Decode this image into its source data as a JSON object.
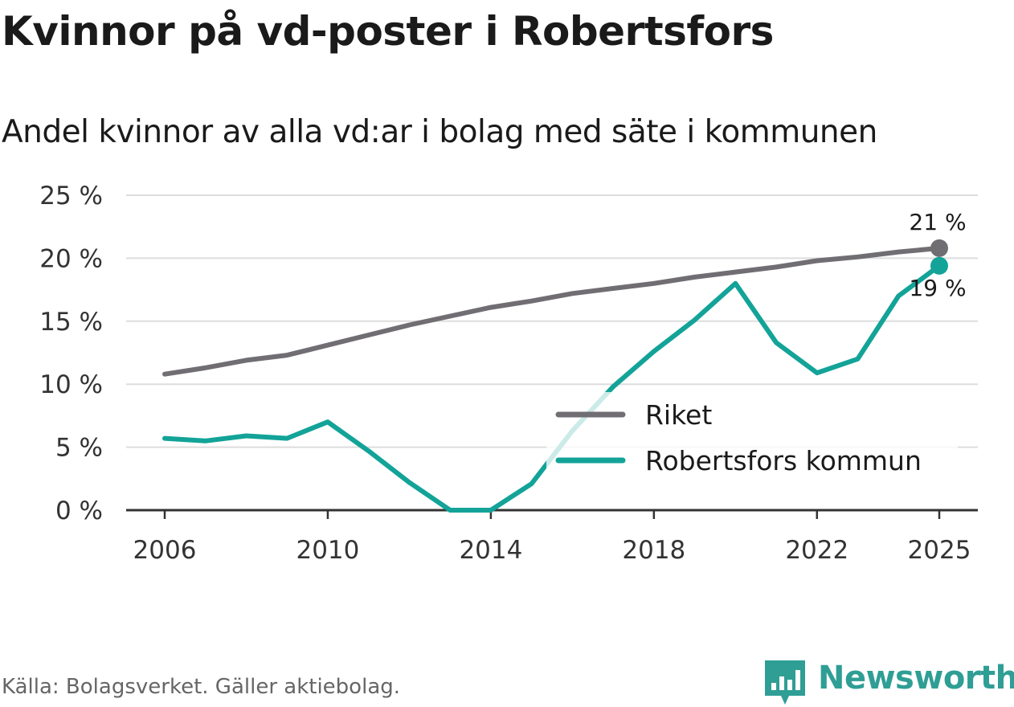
{
  "title": "Kvinnor på vd-poster i Robertsfors",
  "subtitle": "Andel kvinnor av alla vd:ar i bolag med säte i kommunen",
  "source": "Källa: Bolagsverket. Gäller aktiebolag.",
  "brand": "Newsworthy",
  "colors": {
    "riket": "#706e73",
    "kommun": "#13a398",
    "grid": "#dddddd",
    "axis": "#333333",
    "brand": "#2f9e95"
  },
  "chart_data": {
    "type": "line",
    "title": "Kvinnor på vd-poster i Robertsfors",
    "subtitle": "Andel kvinnor av alla vd:ar i bolag med säte i kommunen",
    "xlabel": "",
    "ylabel": "",
    "ylim": [
      0,
      25
    ],
    "xlim": [
      2006,
      2025
    ],
    "y_ticks": [
      0,
      5,
      10,
      15,
      20,
      25
    ],
    "y_tick_labels": [
      "0 %",
      "5 %",
      "10 %",
      "15 %",
      "20 %",
      "25 %"
    ],
    "x_ticks": [
      2006,
      2010,
      2014,
      2018,
      2022,
      2025
    ],
    "x_tick_labels": [
      "2006",
      "2010",
      "2014",
      "2018",
      "2022",
      "2025"
    ],
    "grid": true,
    "legend": "center-right",
    "x": [
      2006,
      2007,
      2008,
      2009,
      2010,
      2011,
      2012,
      2013,
      2014,
      2015,
      2016,
      2017,
      2018,
      2019,
      2020,
      2021,
      2022,
      2023,
      2024,
      2025
    ],
    "series": [
      {
        "name": "Riket",
        "color": "#706e73",
        "values": [
          10.8,
          11.3,
          11.9,
          12.3,
          13.1,
          13.9,
          14.7,
          15.4,
          16.1,
          16.6,
          17.2,
          17.6,
          18.0,
          18.5,
          18.9,
          19.3,
          19.8,
          20.1,
          20.5,
          20.8
        ],
        "end_label": "21 %"
      },
      {
        "name": "Robertsfors kommun",
        "color": "#13a398",
        "values": [
          5.7,
          5.5,
          5.9,
          5.7,
          7.0,
          4.7,
          2.2,
          0.0,
          0.0,
          2.1,
          6.3,
          9.8,
          12.6,
          15.1,
          18.0,
          13.3,
          10.9,
          12.0,
          17.0,
          19.4
        ],
        "end_label": "19 %"
      }
    ]
  }
}
